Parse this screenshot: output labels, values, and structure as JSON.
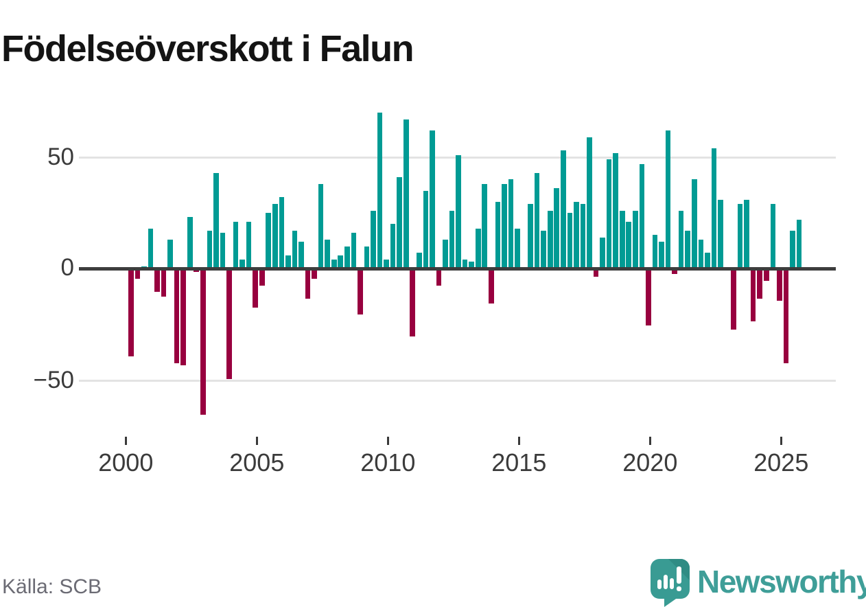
{
  "title": "Födelseöverskott i Falun",
  "source_note": "Källa: SCB",
  "branding": {
    "wordmark": "Newsworthy",
    "icon": "speech-bubble-with-bar-chart-and-exclamation"
  },
  "colors": {
    "positive_bar": "#009b94",
    "negative_bar": "#98003f",
    "zero_line": "#3d3d3d",
    "gridline": "#e3e3e3",
    "axis_text": "#3b3b3b",
    "title_text": "#141414",
    "source_text": "#6b6b74",
    "brand_teal": "#3f9e98",
    "brand_icon_teal": "#399b93"
  },
  "y_axis": {
    "tick_labels": [
      "50",
      "0",
      "−50"
    ],
    "tick_values": [
      50,
      0,
      -50
    ]
  },
  "x_axis": {
    "tick_labels": [
      "2000",
      "2005",
      "2010",
      "2015",
      "2020",
      "2025"
    ]
  },
  "chart_data": {
    "type": "bar",
    "title": "Födelseöverskott i Falun",
    "frequency": "quarterly",
    "start_period": "2000 Q1",
    "end_period": "2025 Q3",
    "baseline": 0,
    "ylim": [
      -70,
      75
    ],
    "grid": "horizontal gridlines at -50, 0, 50; legend none",
    "values": [
      -39,
      -4,
      1,
      18,
      -10,
      -12,
      13,
      -42,
      -43,
      23,
      -1,
      -65,
      17,
      43,
      16,
      -49,
      21,
      4,
      21,
      -17,
      -7,
      25,
      29,
      32,
      6,
      17,
      12,
      -13,
      -4,
      38,
      13,
      4,
      6,
      10,
      16,
      -20,
      10,
      26,
      70,
      4,
      20,
      41,
      67,
      -30,
      7,
      35,
      62,
      -7,
      13,
      26,
      51,
      4,
      3,
      18,
      38,
      -15,
      30,
      38,
      40,
      18,
      0,
      29,
      43,
      17,
      26,
      36,
      53,
      25,
      30,
      29,
      59,
      -3,
      14,
      49,
      52,
      26,
      21,
      26,
      47,
      -25,
      15,
      12,
      62,
      -2,
      26,
      17,
      40,
      13,
      7,
      54,
      31,
      0,
      -27,
      29,
      31,
      -23,
      -13,
      -5,
      29,
      -14,
      -42,
      17,
      22
    ]
  }
}
